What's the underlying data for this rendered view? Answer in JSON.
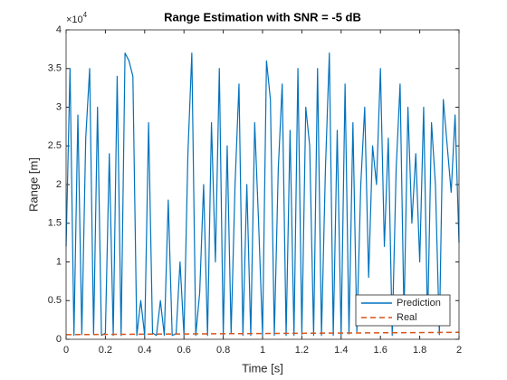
{
  "chart_data": {
    "type": "line",
    "title": "Range Estimation with SNR = -5 dB",
    "xlabel": "Time [s]",
    "ylabel": "Range [m]",
    "y_multiplier": {
      "base": "×10",
      "exponent": 4
    },
    "xlim": [
      0,
      2
    ],
    "ylim": [
      0,
      40000
    ],
    "xticks": [
      0,
      0.2,
      0.4,
      0.6,
      0.8,
      1,
      1.2,
      1.4,
      1.6,
      1.8,
      2
    ],
    "yticks": [
      0,
      {
        "value": 5000,
        "label": "0.5"
      },
      {
        "value": 10000,
        "label": "1"
      },
      {
        "value": 15000,
        "label": "1.5"
      },
      {
        "value": 20000,
        "label": "2"
      },
      {
        "value": 25000,
        "label": "2.5"
      },
      {
        "value": 30000,
        "label": "3"
      },
      {
        "value": 35000,
        "label": "3.5"
      },
      {
        "value": 40000,
        "label": "4"
      }
    ],
    "legend": "southeast",
    "series": [
      {
        "name": "Prediction",
        "color": "#0072bd",
        "dash": "solid",
        "x": [
          0,
          0.02,
          0.04,
          0.06,
          0.08,
          0.1,
          0.12,
          0.14,
          0.16,
          0.18,
          0.2,
          0.22,
          0.24,
          0.26,
          0.28,
          0.3,
          0.32,
          0.34,
          0.36,
          0.38,
          0.4,
          0.42,
          0.44,
          0.46,
          0.48,
          0.5,
          0.52,
          0.54,
          0.56,
          0.58,
          0.6,
          0.62,
          0.64,
          0.66,
          0.68,
          0.7,
          0.72,
          0.74,
          0.76,
          0.78,
          0.8,
          0.82,
          0.84,
          0.86,
          0.88,
          0.9,
          0.92,
          0.94,
          0.96,
          0.98,
          1,
          1.02,
          1.04,
          1.06,
          1.08,
          1.1,
          1.12,
          1.14,
          1.16,
          1.18,
          1.2,
          1.22,
          1.24,
          1.26,
          1.28,
          1.3,
          1.32,
          1.34,
          1.36,
          1.38,
          1.4,
          1.42,
          1.44,
          1.46,
          1.48,
          1.5,
          1.52,
          1.54,
          1.56,
          1.58,
          1.6,
          1.62,
          1.64,
          1.66,
          1.68,
          1.7,
          1.72,
          1.74,
          1.76,
          1.78,
          1.8,
          1.82,
          1.84,
          1.86,
          1.88,
          1.9,
          1.92,
          1.94,
          1.96,
          1.98,
          2
        ],
        "values": [
          12000,
          35000,
          500,
          29000,
          600,
          26000,
          35000,
          600,
          30000,
          500,
          800,
          24000,
          500,
          34000,
          500,
          37000,
          36000,
          34000,
          500,
          5000,
          500,
          28000,
          800,
          500,
          5000,
          500,
          18000,
          500,
          700,
          10000,
          500,
          24000,
          37000,
          500,
          6000,
          20000,
          500,
          28000,
          10000,
          35000,
          500,
          25000,
          700,
          20000,
          33000,
          500,
          20000,
          500,
          28000,
          15000,
          500,
          36000,
          31000,
          500,
          22000,
          33000,
          500,
          27000,
          500,
          35000,
          600,
          30000,
          25000,
          500,
          35000,
          500,
          22000,
          37000,
          500,
          27000,
          500,
          33000,
          700,
          28000,
          1000,
          20000,
          30000,
          8000,
          25000,
          20000,
          35000,
          12000,
          26000,
          500,
          22000,
          33000,
          3000,
          30000,
          15000,
          24000,
          10000,
          30000,
          2000,
          28000,
          20000,
          600,
          31000,
          25000,
          19000,
          29000,
          12500
        ]
      },
      {
        "name": "Real",
        "color": "#d95319",
        "dash": "dashed",
        "x": [
          0,
          2
        ],
        "values": [
          600,
          900
        ]
      }
    ]
  }
}
